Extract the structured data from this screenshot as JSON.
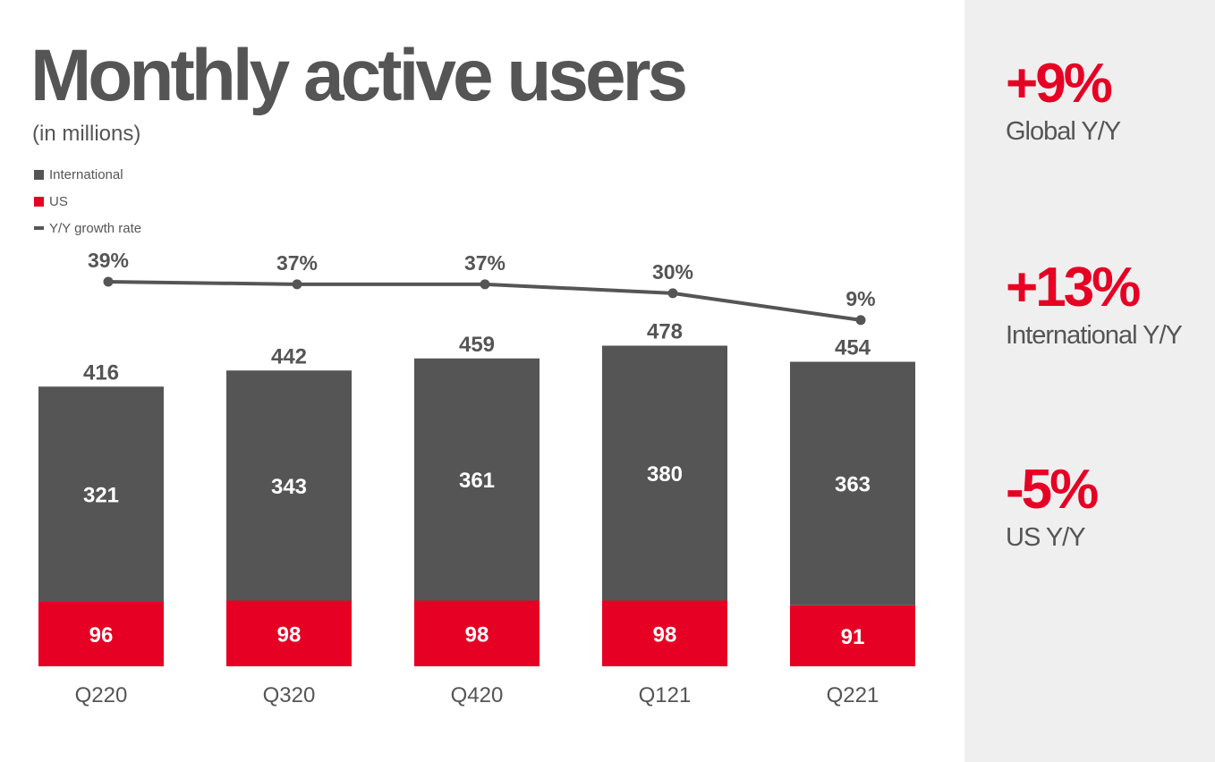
{
  "title": "Monthly active users",
  "subtitle": "(in millions)",
  "colors": {
    "international": "#555555",
    "us": "#e60023",
    "line": "#555555",
    "panel": "#efefef"
  },
  "chart_data": {
    "type": "bar",
    "stacked": true,
    "categories": [
      "Q220",
      "Q320",
      "Q420",
      "Q121",
      "Q221"
    ],
    "series": [
      {
        "name": "International",
        "values": [
          321,
          343,
          361,
          380,
          363
        ]
      },
      {
        "name": "US",
        "values": [
          96,
          98,
          98,
          98,
          91
        ]
      }
    ],
    "totals": [
      416,
      442,
      459,
      478,
      454
    ],
    "line_series": {
      "name": "Y/Y growth rate",
      "values": [
        39,
        37,
        37,
        30,
        9
      ],
      "labels": [
        "39%",
        "37%",
        "37%",
        "30%",
        "9%"
      ]
    },
    "legend": [
      "International",
      "US",
      "Y/Y growth rate"
    ],
    "legend_position": "top-left",
    "grid": false
  },
  "stats": [
    {
      "value": "+9%",
      "label": "Global Y/Y"
    },
    {
      "value": "+13%",
      "label": "International Y/Y"
    },
    {
      "value": "-5%",
      "label": "US Y/Y"
    }
  ]
}
